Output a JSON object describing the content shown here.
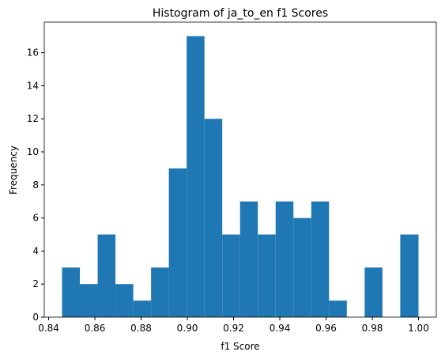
{
  "chart_data": {
    "type": "histogram",
    "title": "Histogram of ja_to_en f1 Scores",
    "x_label": "f1 Score",
    "y_label": "Frequency",
    "color": "#1f77b4",
    "bins": [
      0.8458,
      0.8535,
      0.8612,
      0.8689,
      0.8766,
      0.8843,
      0.892,
      0.8997,
      0.9074,
      0.9151,
      0.9228,
      0.9305,
      0.9382,
      0.9459,
      0.9536,
      0.9613,
      0.969,
      0.9767,
      0.9844,
      0.9921,
      1.0
    ],
    "values": [
      3,
      2,
      5,
      2,
      1,
      3,
      9,
      17,
      12,
      5,
      7,
      5,
      7,
      6,
      7,
      1,
      0,
      3,
      0,
      5
    ],
    "xlim": [
      0.8381,
      1.0077
    ],
    "xticks": [
      0.84,
      0.86,
      0.88,
      {
        "value": 0.9,
        "label": "0.90"
      },
      0.92,
      0.94,
      0.96,
      0.98,
      {
        "value": 1,
        "label": "1.00"
      }
    ],
    "ylim": [
      0,
      17.85
    ],
    "yticks": [
      0,
      2,
      4,
      6,
      8,
      10,
      12,
      14,
      16
    ]
  }
}
